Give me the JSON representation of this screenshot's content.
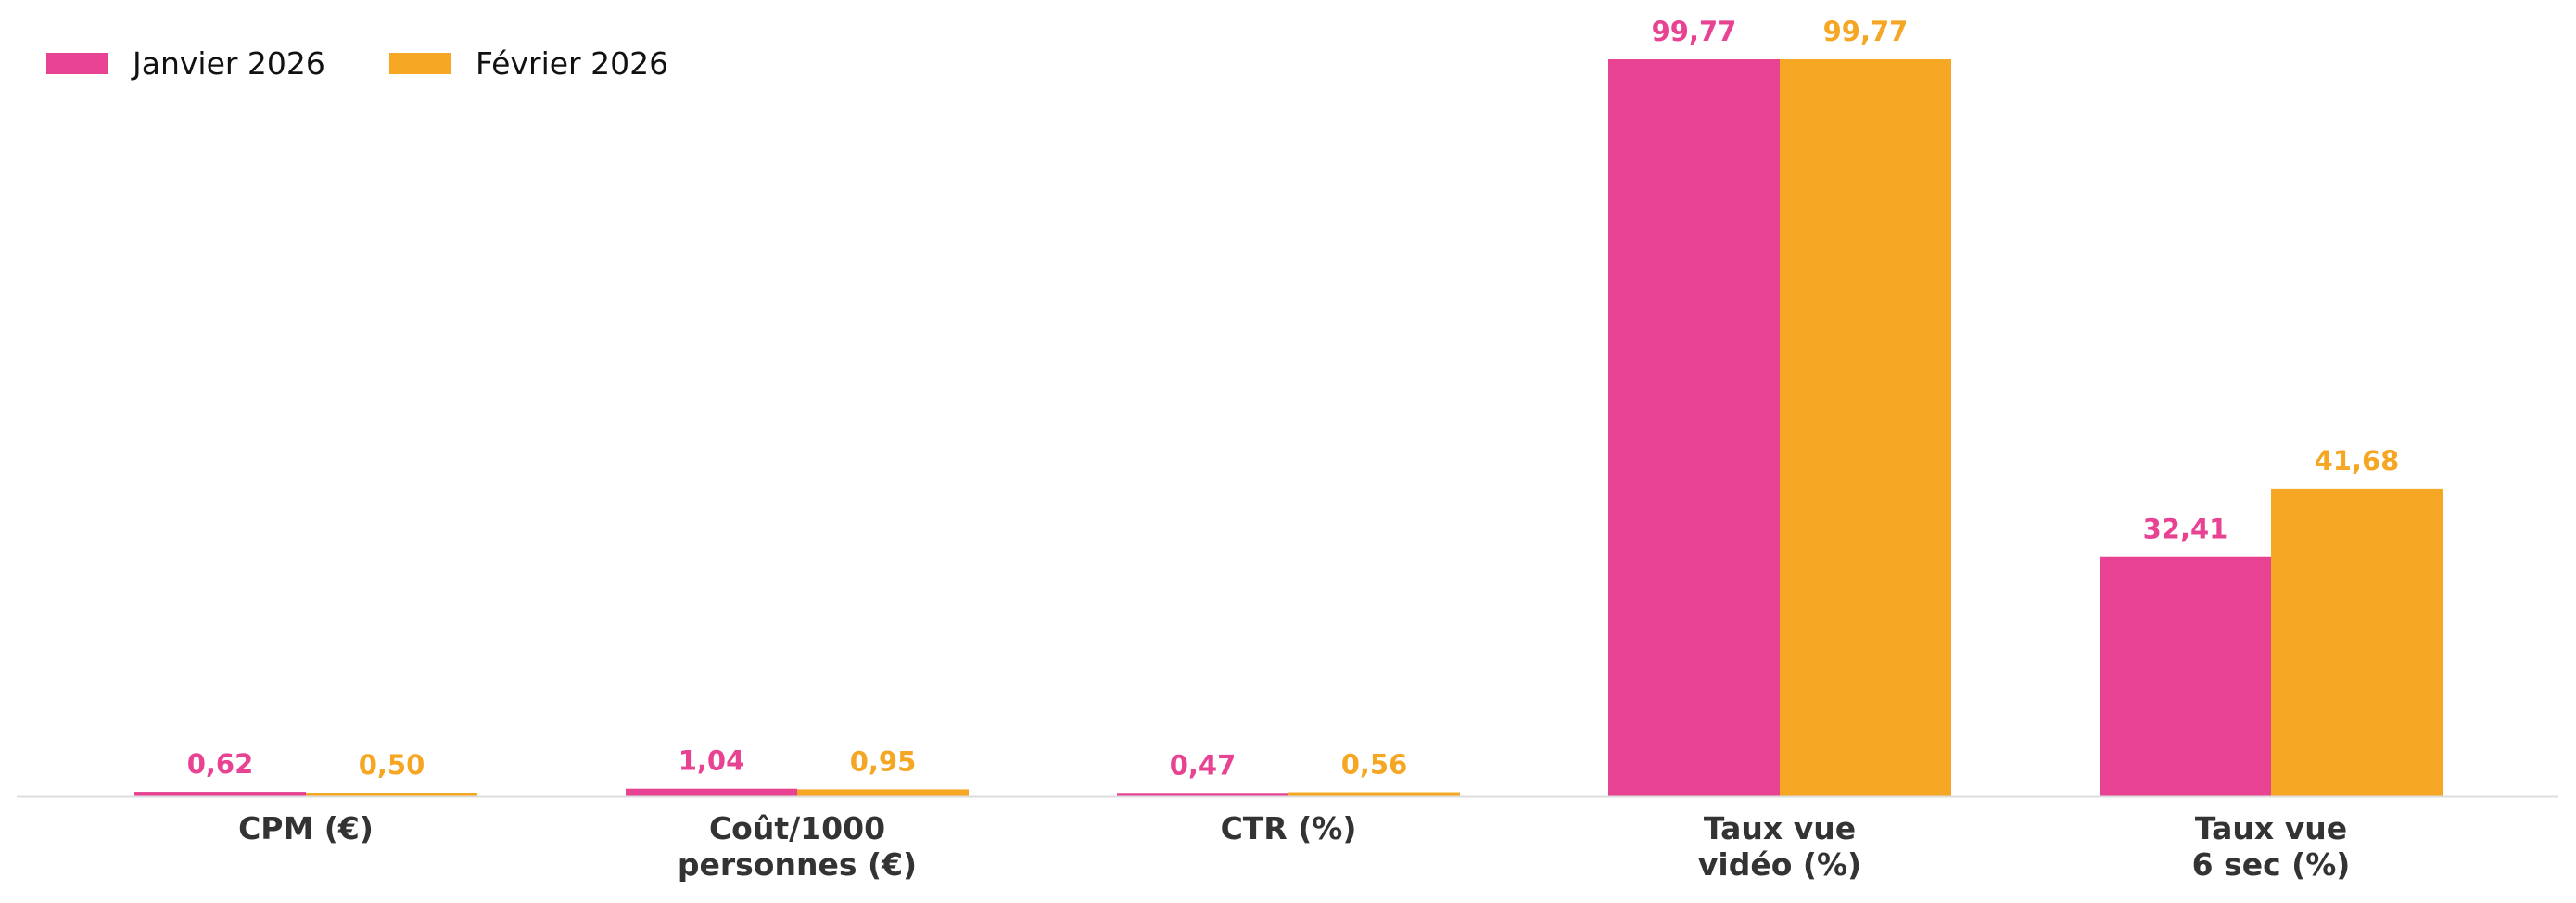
{
  "chart_data": {
    "type": "bar",
    "categories": [
      [
        "CPM (€)"
      ],
      [
        "Coût/1000",
        "personnes (€)"
      ],
      [
        "CTR (%)"
      ],
      [
        "Taux vue",
        "vidéo (%)"
      ],
      [
        "Taux vue",
        "6 sec (%)"
      ]
    ],
    "series": [
      {
        "name": "Janvier 2026",
        "color": "#E84393",
        "values": [
          0.62,
          1.04,
          0.47,
          99.77,
          32.41
        ],
        "labels": [
          "0,62",
          "1,04",
          "0,47",
          "99,77",
          "32,41"
        ]
      },
      {
        "name": "Février 2026",
        "color": "#F5A623",
        "values": [
          0.5,
          0.95,
          0.56,
          99.77,
          41.68
        ],
        "labels": [
          "0,50",
          "0,95",
          "0,56",
          "99,77",
          "41,68"
        ]
      }
    ],
    "ylim": [
      0,
      99.77
    ],
    "grid": false,
    "legend_position": "top-left",
    "axis_color": "#DDDDDD",
    "label_color": "#333333"
  }
}
